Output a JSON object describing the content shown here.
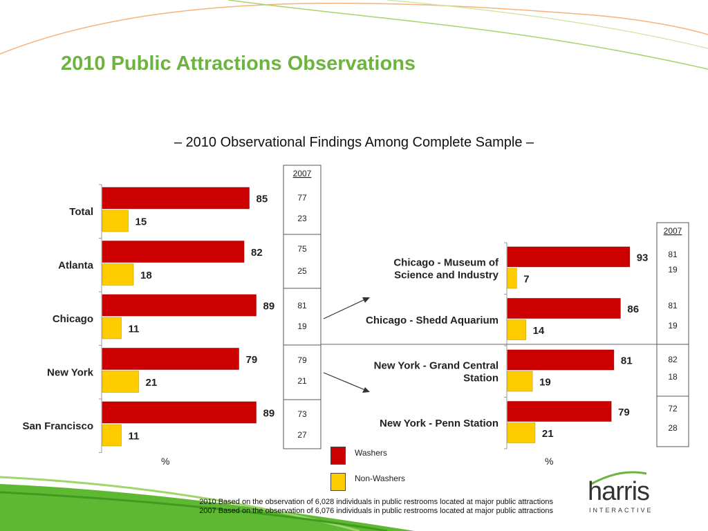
{
  "title": "2010 Public Attractions Observations",
  "subtitle": "– 2010 Observational Findings Among Complete Sample –",
  "colors": {
    "title": "#6db33f",
    "washers": "#cc0000",
    "non_washers": "#ffcc00"
  },
  "legend": {
    "washers": "Washers",
    "non_washers": "Non-Washers"
  },
  "pct_label": "%",
  "compare_header": "2007",
  "footnotes": [
    "2010 Based on the observation of 6,028 individuals in public restrooms located at major public attractions",
    "2007 Based on the observation of 6,076 individuals in public restrooms located at major public attractions"
  ],
  "logo": {
    "word": "harris",
    "sub": "INTERACTIVE"
  },
  "chart_data": [
    {
      "type": "bar",
      "orientation": "horizontal",
      "categories": [
        "Total",
        "Atlanta",
        "Chicago",
        "New York",
        "San Francisco"
      ],
      "series": [
        {
          "name": "Washers",
          "values": [
            85,
            82,
            89,
            79,
            89
          ]
        },
        {
          "name": "Non-Washers",
          "values": [
            15,
            18,
            11,
            21,
            11
          ]
        }
      ],
      "comparison_2007": [
        [
          77,
          23
        ],
        [
          75,
          25
        ],
        [
          81,
          19
        ],
        [
          79,
          21
        ],
        [
          73,
          27
        ]
      ],
      "xlim": [
        0,
        100
      ]
    },
    {
      "type": "bar",
      "orientation": "horizontal",
      "categories": [
        [
          "Chicago - Museum of",
          "Science and Industry"
        ],
        [
          "Chicago - Shedd Aquarium"
        ],
        [
          "New York - Grand Central",
          "Station"
        ],
        [
          "New York - Penn Station"
        ]
      ],
      "series": [
        {
          "name": "Washers",
          "values": [
            93,
            86,
            81,
            79
          ]
        },
        {
          "name": "Non-Washers",
          "values": [
            7,
            14,
            19,
            21
          ]
        }
      ],
      "comparison_2007": [
        [
          81,
          19
        ],
        [
          81,
          19
        ],
        [
          82,
          18
        ],
        [
          72,
          28
        ]
      ],
      "xlim": [
        0,
        100
      ]
    }
  ]
}
